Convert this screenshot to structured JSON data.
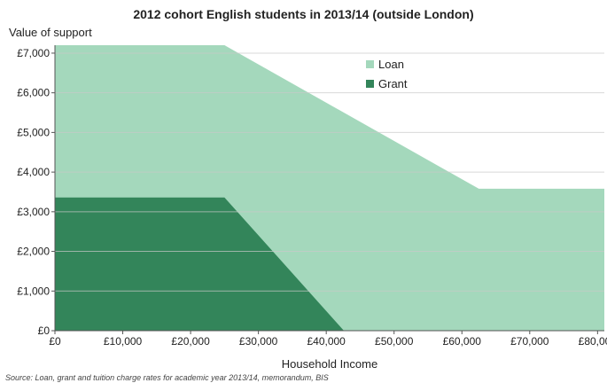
{
  "chart_data": {
    "type": "area",
    "title": "2012 cohort English students in 2013/14 (outside London)",
    "ylabel": "Value of support",
    "xlabel": "Household Income",
    "source": "Source: Loan, grant and tuition charge rates for academic year 2013/14, memorandum, BIS",
    "xlim": [
      0,
      81000
    ],
    "ylim": [
      0,
      7200
    ],
    "x_ticks": [
      {
        "value": 0,
        "label": "£0"
      },
      {
        "value": 10000,
        "label": "£10,000"
      },
      {
        "value": 20000,
        "label": "£20,000"
      },
      {
        "value": 30000,
        "label": "£30,000"
      },
      {
        "value": 40000,
        "label": "£40,000"
      },
      {
        "value": 50000,
        "label": "£50,000"
      },
      {
        "value": 60000,
        "label": "£60,000"
      },
      {
        "value": 70000,
        "label": "£70,000"
      },
      {
        "value": 80000,
        "label": "£80,000"
      }
    ],
    "y_ticks": [
      {
        "value": 0,
        "label": "£0"
      },
      {
        "value": 1000,
        "label": "£1,000"
      },
      {
        "value": 2000,
        "label": "£2,000"
      },
      {
        "value": 3000,
        "label": "£3,000"
      },
      {
        "value": 4000,
        "label": "£4,000"
      },
      {
        "value": 5000,
        "label": "£5,000"
      },
      {
        "value": 6000,
        "label": "£6,000"
      },
      {
        "value": 7000,
        "label": "£7,000"
      }
    ],
    "grid": "horizontal",
    "legend_position": "top-right",
    "series": [
      {
        "name": "Loan",
        "color": "#a4d8bc",
        "points": [
          [
            0,
            7200
          ],
          [
            25000,
            7200
          ],
          [
            42600,
            5500
          ],
          [
            62500,
            3580
          ],
          [
            81000,
            3580
          ]
        ]
      },
      {
        "name": "Grant",
        "color": "#33855a",
        "points": [
          [
            0,
            3360
          ],
          [
            25000,
            3360
          ],
          [
            42600,
            0
          ]
        ]
      }
    ]
  }
}
